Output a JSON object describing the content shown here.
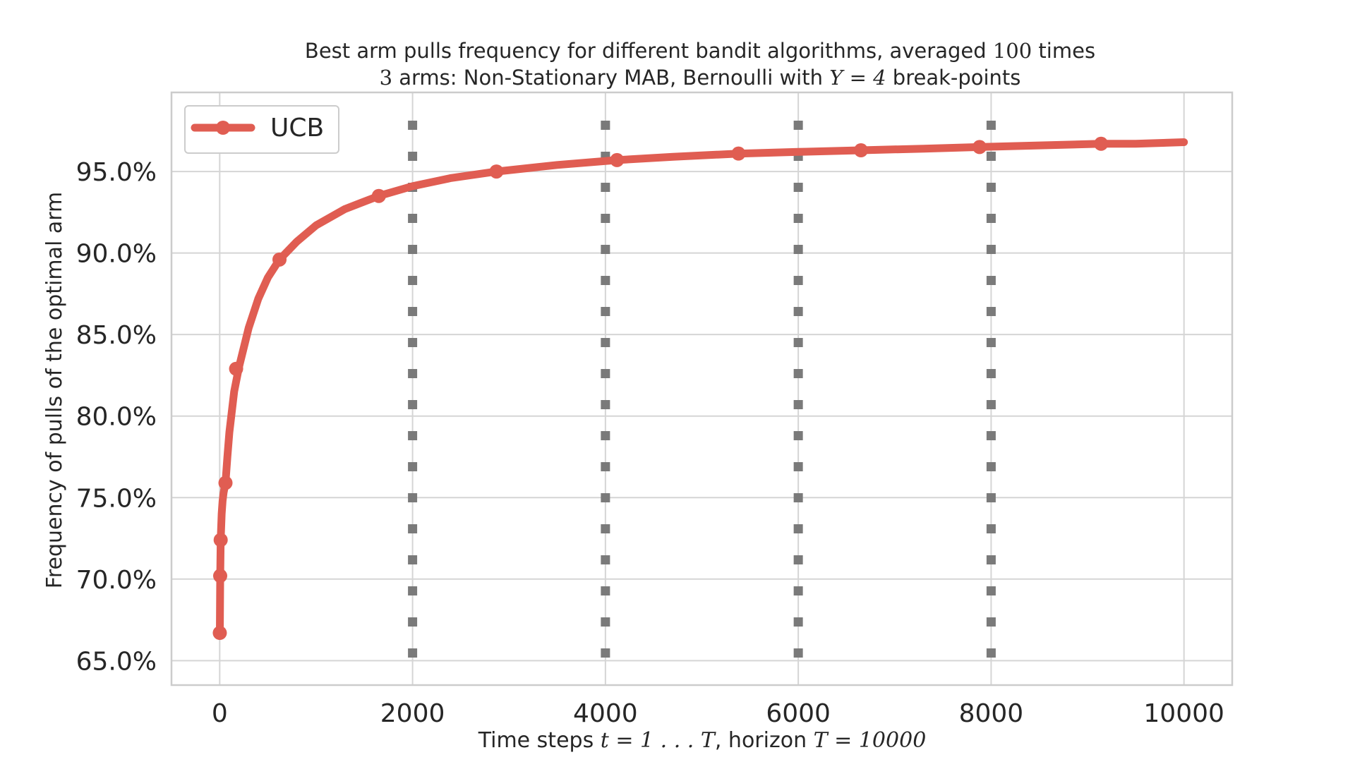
{
  "chart_data": {
    "type": "line",
    "title_line1": {
      "before": "Best arm pulls frequency for different bandit algorithms, averaged ",
      "math": "100",
      "after": " times"
    },
    "title_line2": {
      "math1": "3",
      "middle": " arms: Non-Stationary MAB, Bernoulli with ",
      "math2": "Υ = 4",
      "after": " break-points"
    },
    "xlabel": {
      "before": "Time steps ",
      "math1": "t = 1 . . . T",
      "middle": ", horizon ",
      "math2": "T = 10000"
    },
    "ylabel": "Frequency of pulls of the optimal arm",
    "xlim": [
      -500,
      10500
    ],
    "ylim": [
      0.635,
      0.9985
    ],
    "xticks": [
      0,
      2000,
      4000,
      6000,
      8000,
      10000
    ],
    "xtick_labels": [
      "0",
      "2000",
      "4000",
      "6000",
      "8000",
      "10000"
    ],
    "yticks": [
      0.65,
      0.7,
      0.75,
      0.8,
      0.85,
      0.9,
      0.95
    ],
    "ytick_labels": [
      "65.0%",
      "70.0%",
      "75.0%",
      "80.0%",
      "85.0%",
      "90.0%",
      "95.0%"
    ],
    "grid": true,
    "legend_position": "top-left",
    "break_points": [
      2000,
      4000,
      6000,
      8000
    ],
    "series": [
      {
        "name": "UCB",
        "color": "#e05d52",
        "x": [
          1,
          5,
          10,
          20,
          30,
          40,
          60,
          80,
          100,
          150,
          200,
          300,
          400,
          500,
          620,
          800,
          1000,
          1300,
          1650,
          2000,
          2400,
          2870,
          3500,
          4120,
          4700,
          5380,
          6000,
          6650,
          7300,
          7880,
          8500,
          9140,
          9500,
          10000
        ],
        "y": [
          0.667,
          0.7,
          0.724,
          0.74,
          0.748,
          0.753,
          0.759,
          0.775,
          0.79,
          0.815,
          0.83,
          0.854,
          0.872,
          0.885,
          0.896,
          0.907,
          0.917,
          0.927,
          0.935,
          0.941,
          0.946,
          0.95,
          0.954,
          0.957,
          0.959,
          0.961,
          0.962,
          0.963,
          0.964,
          0.965,
          0.966,
          0.967,
          0.967,
          0.968
        ],
        "marker_x": [
          1,
          5,
          10,
          60,
          170,
          620,
          1650,
          2870,
          4120,
          5380,
          6650,
          7880,
          9140
        ],
        "marker_y": [
          0.667,
          0.702,
          0.724,
          0.759,
          0.829,
          0.896,
          0.935,
          0.95,
          0.957,
          0.961,
          0.963,
          0.965,
          0.967
        ]
      }
    ]
  }
}
